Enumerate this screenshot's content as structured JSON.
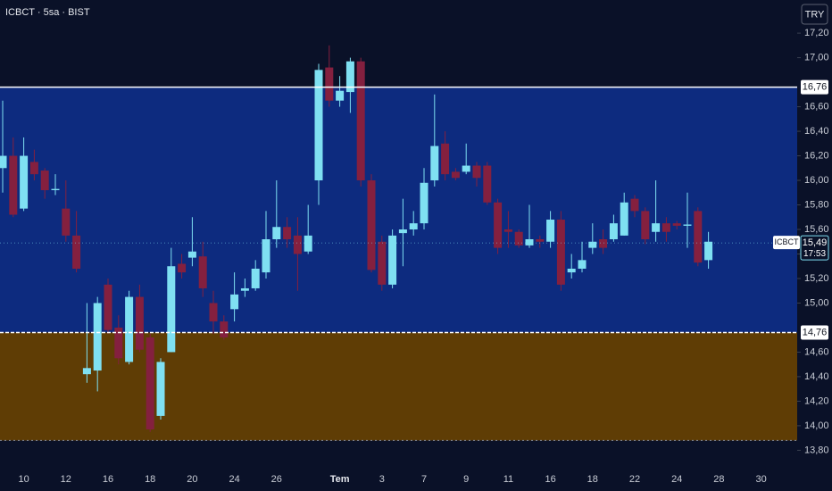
{
  "chart_data": {
    "type": "candlestick",
    "title": "ICBCT · 5sa · BIST",
    "currency_button": "TRY",
    "background": "#0a1128",
    "up_color": "#7fe0f2",
    "down_color": "#84203f",
    "categories": [
      null,
      null,
      "10",
      null,
      null,
      null,
      "12",
      null,
      null,
      null,
      "16",
      null,
      null,
      null,
      "18",
      null,
      null,
      null,
      "20",
      null,
      null,
      null,
      "24",
      null,
      null,
      null,
      "26",
      null,
      null,
      null,
      null,
      null,
      "Tem",
      null,
      null,
      null,
      "3",
      null,
      null,
      null,
      "7",
      null,
      null,
      null,
      "9",
      null,
      null,
      null,
      "11",
      null,
      null,
      null,
      "16",
      null,
      null,
      null,
      "18",
      null,
      null,
      null,
      "22",
      null,
      null,
      null,
      "24",
      null,
      null,
      null,
      "28",
      null,
      null,
      null,
      "30"
    ],
    "open": [
      16.1,
      16.2,
      15.77,
      16.15,
      16.08,
      15.92,
      15.77,
      15.55,
      14.42,
      14.45,
      15.15,
      14.8,
      14.52,
      15.05,
      14.72,
      14.08,
      14.6,
      15.32,
      15.37,
      15.38,
      15.0,
      14.85,
      14.95,
      15.1,
      15.12,
      15.25,
      15.52,
      15.62,
      15.55,
      15.42,
      16.0,
      16.92,
      16.65,
      16.72,
      16.97,
      16.0,
      15.5,
      15.15,
      15.57,
      15.6,
      15.65,
      16.0,
      16.3,
      16.07,
      16.07,
      16.12,
      16.12,
      15.82,
      15.6,
      15.58,
      15.47,
      15.52,
      15.5,
      15.68,
      15.25,
      15.28,
      15.45,
      15.52,
      15.52,
      15.55,
      15.85,
      15.75,
      15.58,
      15.65,
      15.65,
      15.63,
      15.75,
      15.35,
      null,
      null,
      null,
      null,
      null
    ],
    "high": [
      16.65,
      16.35,
      16.35,
      16.25,
      16.1,
      16.05,
      16.0,
      15.75,
      15.0,
      15.05,
      15.2,
      14.9,
      15.1,
      15.15,
      14.75,
      14.55,
      15.45,
      15.4,
      15.7,
      15.5,
      15.1,
      14.9,
      15.25,
      15.2,
      15.35,
      15.75,
      16.0,
      15.7,
      15.7,
      15.8,
      16.95,
      17.1,
      16.85,
      17.0,
      17.0,
      16.05,
      15.55,
      15.6,
      15.85,
      15.75,
      16.1,
      16.7,
      16.4,
      16.1,
      16.3,
      16.15,
      16.15,
      15.85,
      15.75,
      15.6,
      15.8,
      15.55,
      15.75,
      15.75,
      15.4,
      15.5,
      15.65,
      15.6,
      15.72,
      15.9,
      15.88,
      15.78,
      16.0,
      15.7,
      15.67,
      15.9,
      15.78,
      15.58,
      null,
      null,
      null,
      null,
      null
    ],
    "low": [
      15.9,
      15.7,
      15.75,
      16.0,
      15.85,
      15.88,
      15.5,
      15.25,
      14.35,
      14.28,
      14.75,
      14.5,
      14.5,
      14.6,
      13.95,
      14.05,
      14.6,
      15.2,
      15.3,
      15.05,
      14.75,
      14.7,
      14.85,
      15.05,
      15.1,
      15.2,
      15.45,
      15.45,
      15.1,
      15.4,
      15.8,
      16.6,
      16.6,
      16.55,
      15.95,
      15.25,
      15.1,
      15.12,
      15.3,
      15.55,
      15.6,
      15.95,
      16.0,
      16.0,
      16.05,
      15.95,
      15.8,
      15.4,
      15.45,
      15.45,
      15.45,
      15.45,
      15.45,
      15.1,
      15.2,
      15.25,
      15.4,
      15.4,
      15.5,
      15.55,
      15.7,
      15.48,
      15.5,
      15.5,
      15.6,
      15.45,
      15.3,
      15.28,
      null,
      null,
      null,
      null,
      null
    ],
    "close": [
      16.2,
      15.72,
      16.2,
      16.05,
      15.92,
      15.93,
      15.55,
      15.28,
      14.47,
      15.0,
      14.78,
      14.55,
      15.05,
      14.62,
      13.97,
      14.52,
      15.3,
      15.25,
      15.42,
      15.12,
      14.85,
      14.72,
      15.07,
      15.12,
      15.28,
      15.52,
      15.62,
      15.52,
      15.4,
      15.55,
      16.9,
      16.65,
      16.73,
      16.97,
      16.0,
      15.27,
      15.15,
      15.55,
      15.6,
      15.65,
      15.98,
      16.28,
      16.05,
      16.02,
      16.12,
      16.02,
      15.82,
      15.45,
      15.58,
      15.47,
      15.52,
      15.5,
      15.68,
      15.15,
      15.28,
      15.35,
      15.5,
      15.45,
      15.65,
      15.82,
      15.75,
      15.52,
      15.65,
      15.58,
      15.63,
      15.64,
      15.33,
      15.5,
      null,
      null,
      null,
      null,
      null
    ],
    "ylim": [
      13.65,
      17.47
    ],
    "yticks": [
      {
        "value": 13.8,
        "label": "13,80"
      },
      {
        "value": 14.0,
        "label": "14,00"
      },
      {
        "value": 14.2,
        "label": "14,20"
      },
      {
        "value": 14.4,
        "label": "14,40"
      },
      {
        "value": 14.6,
        "label": "14,60"
      },
      {
        "value": 15.0,
        "label": "15,00"
      },
      {
        "value": 15.2,
        "label": "15,20"
      },
      {
        "value": 15.4,
        "label": "15,40"
      },
      {
        "value": 15.6,
        "label": "15,60"
      },
      {
        "value": 15.8,
        "label": "15,80"
      },
      {
        "value": 16.0,
        "label": "16,00"
      },
      {
        "value": 16.2,
        "label": "16,20"
      },
      {
        "value": 16.4,
        "label": "16,40"
      },
      {
        "value": 16.6,
        "label": "16,60"
      },
      {
        "value": 17.0,
        "label": "17,00"
      },
      {
        "value": 17.2,
        "label": "17,20"
      }
    ],
    "zones": [
      {
        "from": 14.76,
        "to": 16.76,
        "color": "#0d2b7f"
      },
      {
        "from": 13.88,
        "to": 14.76,
        "color": "#5f3d05"
      }
    ],
    "levels": [
      {
        "value": 16.76,
        "label": "16,76",
        "style": "solid"
      },
      {
        "value": 14.76,
        "label": "14,76",
        "style": "dashed"
      },
      {
        "value": 13.88,
        "style": "dotted"
      }
    ],
    "last_price": {
      "value": 15.49,
      "label": "15,49",
      "symbol": "ICBCT",
      "countdown": "17:53"
    }
  }
}
